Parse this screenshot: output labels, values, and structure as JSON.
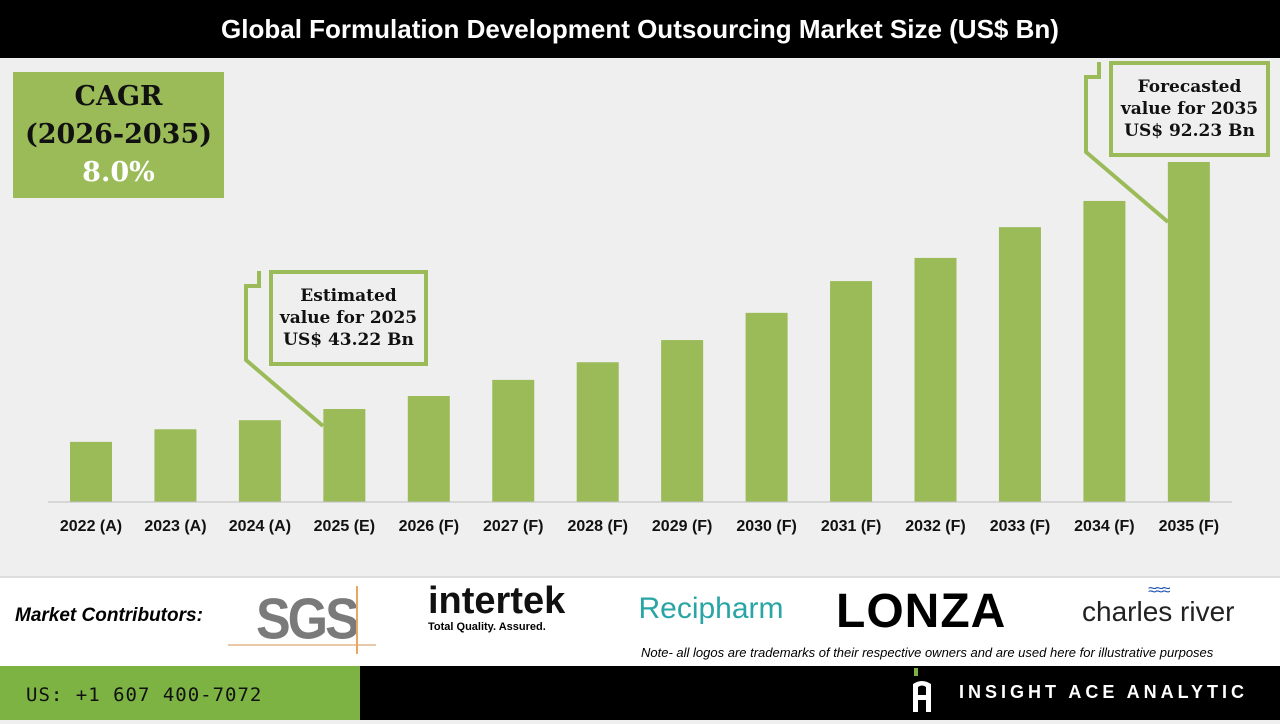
{
  "title": "Global Formulation Development Outsourcing Market Size (US$ Bn)",
  "cagr": {
    "label": "CAGR",
    "period": "(2026-2035)",
    "value": "8.0%"
  },
  "callouts": {
    "estimated": {
      "line1": "Estimated",
      "line2": "value for 2025",
      "line3": "US$ 43.22 Bn"
    },
    "forecast": {
      "line1": "Forecasted",
      "line2": "value for 2035",
      "line3": "US$ 92.23 Bn"
    }
  },
  "chart_data": {
    "type": "bar",
    "title": "Global Formulation Development Outsourcing Market Size (US$ Bn)",
    "categories": [
      "2022 (A)",
      "2023 (A)",
      "2024 (A)",
      "2025 (E)",
      "2026 (F)",
      "2027 (F)",
      "2028 (F)",
      "2029 (F)",
      "2030 (F)",
      "2031 (F)",
      "2032 (F)",
      "2033 (F)",
      "2034 (F)",
      "2035 (F)"
    ],
    "values": [
      36.7,
      39.2,
      41.0,
      43.22,
      45.8,
      49.0,
      52.5,
      56.9,
      62.3,
      68.6,
      73.2,
      79.3,
      84.5,
      92.23
    ],
    "color": "#9bbb59",
    "grid": false
  },
  "footer": {
    "contributors_label": "Market Contributors:",
    "logos": [
      "SGS",
      "intertek",
      "Total Quality. Assured.",
      "Recipharm",
      "LONZA",
      "charles river"
    ],
    "note": "Note- all logos are trademarks of their respective owners and are used here for illustrative purposes",
    "phone": "US: +1 607 400-7072",
    "brand": "INSIGHT ACE ANALYTIC"
  },
  "colors": {
    "accent": "#9bbb59",
    "phone_bg": "#7cb342"
  }
}
